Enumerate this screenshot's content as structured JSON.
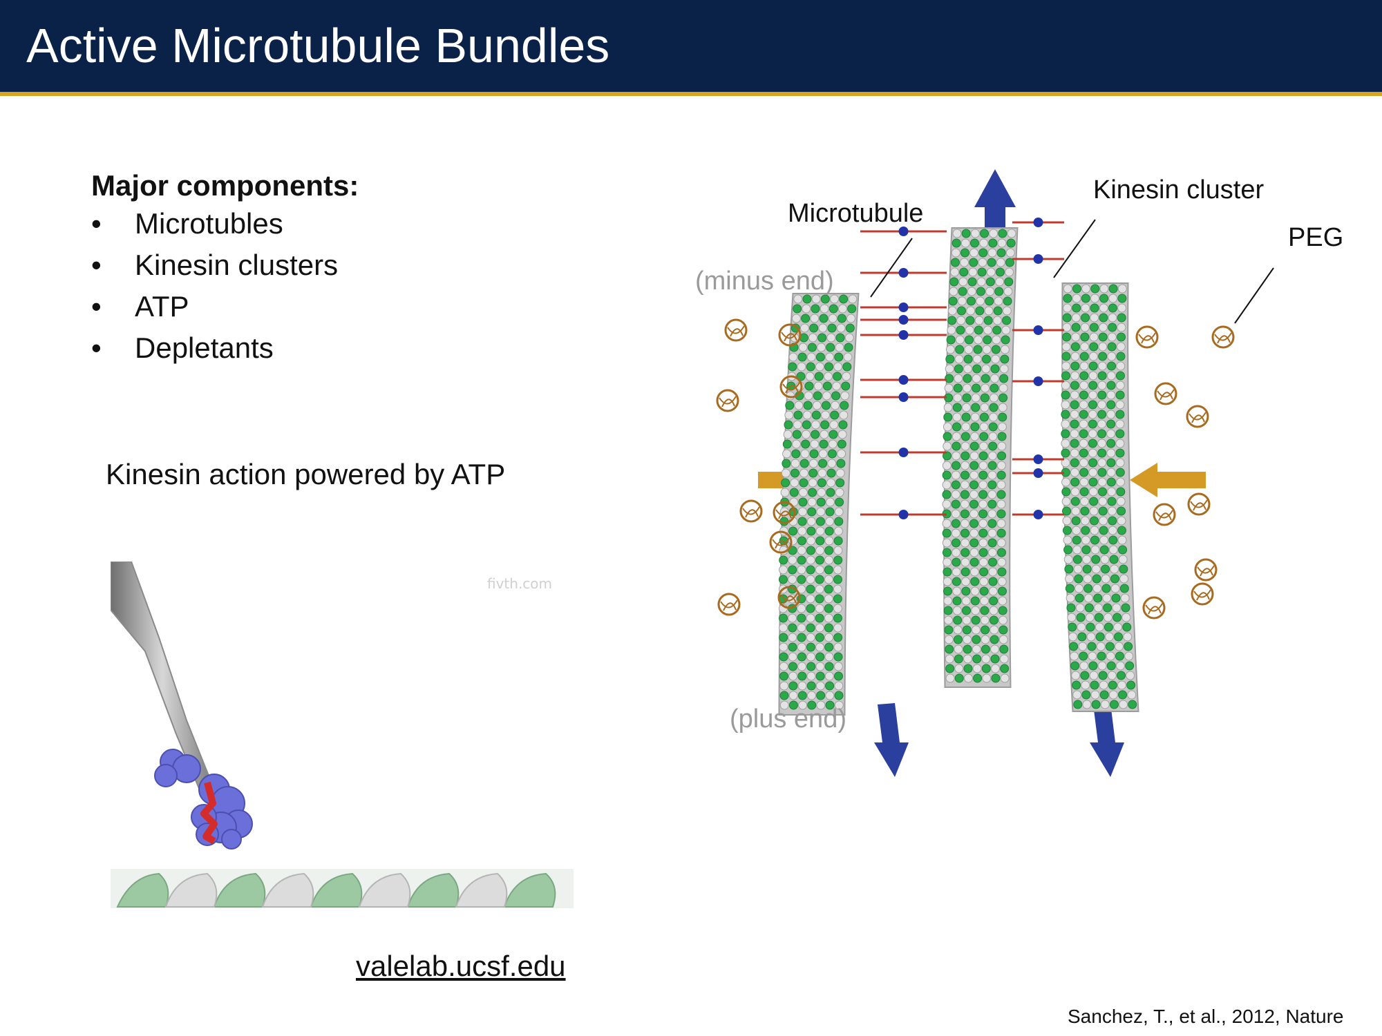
{
  "slide": {
    "title": "Active Microtubule Bundles"
  },
  "components": {
    "heading": "Major components:",
    "bullet_symbol": "•",
    "items": [
      "Microtubles",
      "Kinesin clusters",
      "ATP",
      "Depletants"
    ]
  },
  "kinesin_caption": "Kinesin action powered by ATP",
  "animation": {
    "watermark": "fivth.com",
    "link": "valelab.ucsf.edu"
  },
  "figure": {
    "labels": {
      "microtubule": "Microtubule",
      "kinesin_cluster": "Kinesin cluster",
      "peg": "PEG",
      "minus_end": "(minus end)",
      "plus_end": "(plus end)"
    },
    "colors": {
      "tubulin_green": "#2aa84a",
      "tubulin_grey": "#c8c8c8",
      "kinesin_blue": "#2233a8",
      "linker_red": "#c0392b",
      "arrow_blue": "#2a3f9e",
      "arrow_gold": "#d49a25",
      "peg_brown": "#a86a1f"
    }
  },
  "citation": "Sanchez, T., et al., 2012, Nature",
  "theme": {
    "header_bg": "#0b2248",
    "header_rule": "#d9a521"
  }
}
